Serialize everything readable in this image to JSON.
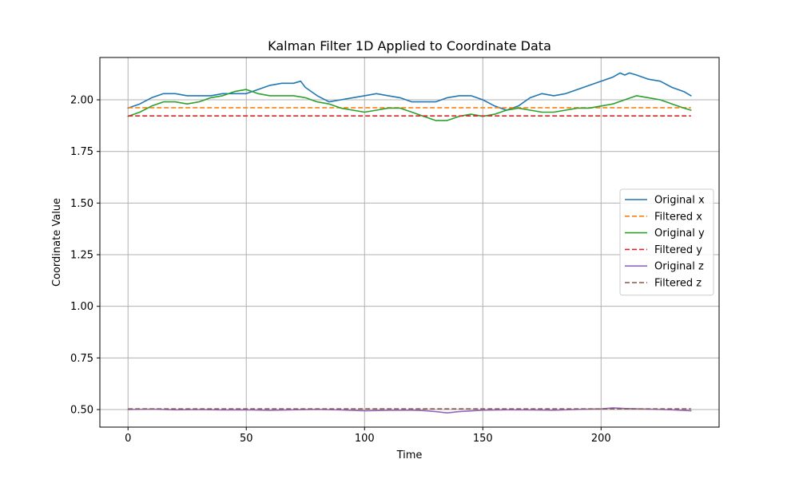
{
  "chart_data": {
    "type": "line",
    "title": "Kalman Filter 1D Applied to Coordinate Data",
    "xlabel": "Time",
    "ylabel": "Coordinate Value",
    "xlim": [
      -11.9,
      249.9
    ],
    "ylim": [
      0.415,
      2.205
    ],
    "xticks": [
      0,
      50,
      100,
      150,
      200
    ],
    "yticks": [
      0.5,
      0.75,
      1.0,
      1.25,
      1.5,
      1.75,
      2.0
    ],
    "xtick_labels": [
      "0",
      "50",
      "100",
      "150",
      "200"
    ],
    "ytick_labels": [
      "0.50",
      "0.75",
      "1.00",
      "1.25",
      "1.50",
      "1.75",
      "2.00"
    ],
    "grid": true,
    "legend_position": "center-right",
    "series": [
      {
        "name": "Original x",
        "color": "#1f77b4",
        "style": "solid",
        "x": [
          0,
          5,
          10,
          15,
          20,
          25,
          30,
          35,
          40,
          45,
          50,
          55,
          60,
          65,
          70,
          73,
          75,
          80,
          85,
          90,
          95,
          100,
          105,
          110,
          115,
          120,
          125,
          130,
          135,
          140,
          145,
          150,
          155,
          160,
          165,
          170,
          175,
          180,
          185,
          190,
          195,
          200,
          205,
          208,
          210,
          212,
          215,
          220,
          225,
          230,
          235,
          238
        ],
        "y": [
          1.96,
          1.98,
          2.01,
          2.03,
          2.03,
          2.02,
          2.02,
          2.02,
          2.03,
          2.03,
          2.03,
          2.05,
          2.07,
          2.08,
          2.08,
          2.09,
          2.06,
          2.02,
          1.99,
          2.0,
          2.01,
          2.02,
          2.03,
          2.02,
          2.01,
          1.99,
          1.99,
          1.99,
          2.01,
          2.02,
          2.02,
          2.0,
          1.97,
          1.95,
          1.97,
          2.01,
          2.03,
          2.02,
          2.03,
          2.05,
          2.07,
          2.09,
          2.11,
          2.13,
          2.12,
          2.13,
          2.12,
          2.1,
          2.09,
          2.06,
          2.04,
          2.02
        ]
      },
      {
        "name": "Filtered x",
        "color": "#ff7f0e",
        "style": "dashed",
        "x": [
          0,
          238
        ],
        "y": [
          1.962,
          1.962
        ]
      },
      {
        "name": "Original y",
        "color": "#2ca02c",
        "style": "solid",
        "x": [
          0,
          5,
          10,
          15,
          20,
          25,
          30,
          35,
          40,
          45,
          50,
          55,
          60,
          65,
          70,
          75,
          80,
          85,
          90,
          95,
          100,
          105,
          110,
          115,
          120,
          125,
          130,
          135,
          140,
          145,
          150,
          155,
          160,
          165,
          170,
          175,
          180,
          185,
          190,
          195,
          200,
          205,
          210,
          215,
          220,
          225,
          230,
          235,
          238
        ],
        "y": [
          1.92,
          1.94,
          1.97,
          1.99,
          1.99,
          1.98,
          1.99,
          2.01,
          2.02,
          2.04,
          2.05,
          2.03,
          2.02,
          2.02,
          2.02,
          2.01,
          1.99,
          1.98,
          1.96,
          1.95,
          1.94,
          1.95,
          1.96,
          1.96,
          1.94,
          1.92,
          1.9,
          1.9,
          1.92,
          1.93,
          1.92,
          1.93,
          1.95,
          1.96,
          1.95,
          1.94,
          1.94,
          1.95,
          1.96,
          1.96,
          1.97,
          1.98,
          2.0,
          2.02,
          2.01,
          2.0,
          1.98,
          1.96,
          1.95
        ]
      },
      {
        "name": "Filtered y",
        "color": "#d62728",
        "style": "dashed",
        "x": [
          0,
          238
        ],
        "y": [
          1.922,
          1.922
        ]
      },
      {
        "name": "Original z",
        "color": "#9467bd",
        "style": "solid",
        "x": [
          0,
          10,
          20,
          30,
          40,
          50,
          60,
          70,
          80,
          90,
          100,
          110,
          120,
          125,
          130,
          135,
          140,
          150,
          160,
          170,
          180,
          190,
          200,
          205,
          210,
          220,
          230,
          238
        ],
        "y": [
          0.5,
          0.502,
          0.499,
          0.5,
          0.498,
          0.499,
          0.496,
          0.499,
          0.501,
          0.498,
          0.494,
          0.496,
          0.497,
          0.495,
          0.49,
          0.484,
          0.49,
          0.497,
          0.499,
          0.498,
          0.497,
          0.501,
          0.503,
          0.508,
          0.505,
          0.502,
          0.499,
          0.494
        ]
      },
      {
        "name": "Filtered z",
        "color": "#8c564b",
        "style": "dashed",
        "x": [
          0,
          238
        ],
        "y": [
          0.503,
          0.503
        ]
      }
    ]
  }
}
